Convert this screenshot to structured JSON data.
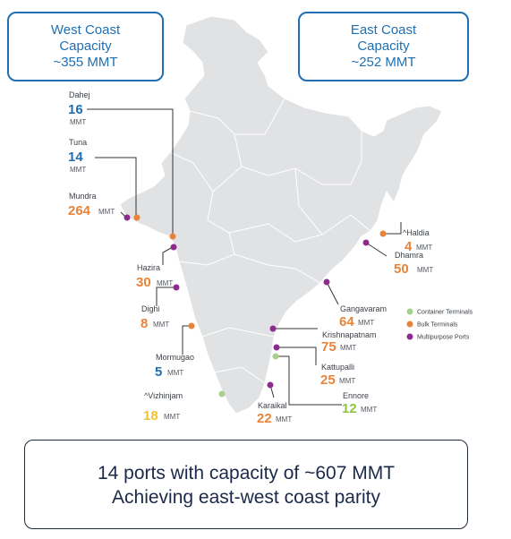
{
  "west_box": {
    "line1": "West Coast",
    "line2": "Capacity",
    "line3": "~355 MMT"
  },
  "east_box": {
    "line1": "East Coast",
    "line2": "Capacity",
    "line3": "~252 MMT"
  },
  "summary": {
    "line1": "14 ports with capacity of ~607 MMT",
    "line2": "Achieving east-west coast parity"
  },
  "unit": "MMT",
  "colors": {
    "container": "#a8d08d",
    "bulk": "#e8833a",
    "multipurpose": "#8e2c8e",
    "west_value": "#1f6fb2",
    "map_fill": "#e1e2e4",
    "leader": "#333333"
  },
  "legend": [
    {
      "label": "Container Terminals",
      "type": "container"
    },
    {
      "label": "Bulk Terminals",
      "type": "bulk"
    },
    {
      "label": "Multipurpose Ports",
      "type": "multipurpose"
    }
  ],
  "ports": [
    {
      "id": "dahej",
      "name": "Dahej",
      "value": "16",
      "type": "bulk",
      "value_color": "#1f6fb2"
    },
    {
      "id": "tuna",
      "name": "Tuna",
      "value": "14",
      "type": "bulk",
      "value_color": "#1f6fb2"
    },
    {
      "id": "mundra",
      "name": "Mundra",
      "value": "264",
      "type": "multipurpose",
      "value_color": "#e8833a"
    },
    {
      "id": "hazira",
      "name": "Hazira",
      "value": "30",
      "type": "multipurpose",
      "value_color": "#e8833a"
    },
    {
      "id": "dighi",
      "name": "Dighi",
      "value": "8",
      "type": "multipurpose",
      "value_color": "#e8833a"
    },
    {
      "id": "mormugao",
      "name": "Mormugao",
      "value": "5",
      "type": "bulk",
      "value_color": "#1f6fb2"
    },
    {
      "id": "vizhinjam",
      "name": "^Vizhinjam",
      "value": "18",
      "type": "container",
      "value_color": "#f2c230"
    },
    {
      "id": "haldia",
      "name": "^Haldia",
      "value": "4",
      "type": "bulk",
      "value_color": "#e8833a"
    },
    {
      "id": "dhamra",
      "name": "Dhamra",
      "value": "50",
      "type": "multipurpose",
      "value_color": "#e8833a"
    },
    {
      "id": "gangavaram",
      "name": "Gangavaram",
      "value": "64",
      "type": "multipurpose",
      "value_color": "#e8833a"
    },
    {
      "id": "krishnapatnam",
      "name": "Krishnapatnam",
      "value": "75",
      "type": "multipurpose",
      "value_color": "#e8833a"
    },
    {
      "id": "kattupalli",
      "name": "Kattupalli",
      "value": "25",
      "type": "multipurpose",
      "value_color": "#e8833a"
    },
    {
      "id": "ennore",
      "name": "Ennore",
      "value": "12",
      "type": "container",
      "value_color": "#8cc63f"
    },
    {
      "id": "karaikal",
      "name": "Karaikal",
      "value": "22",
      "type": "multipurpose",
      "value_color": "#e8833a"
    }
  ]
}
